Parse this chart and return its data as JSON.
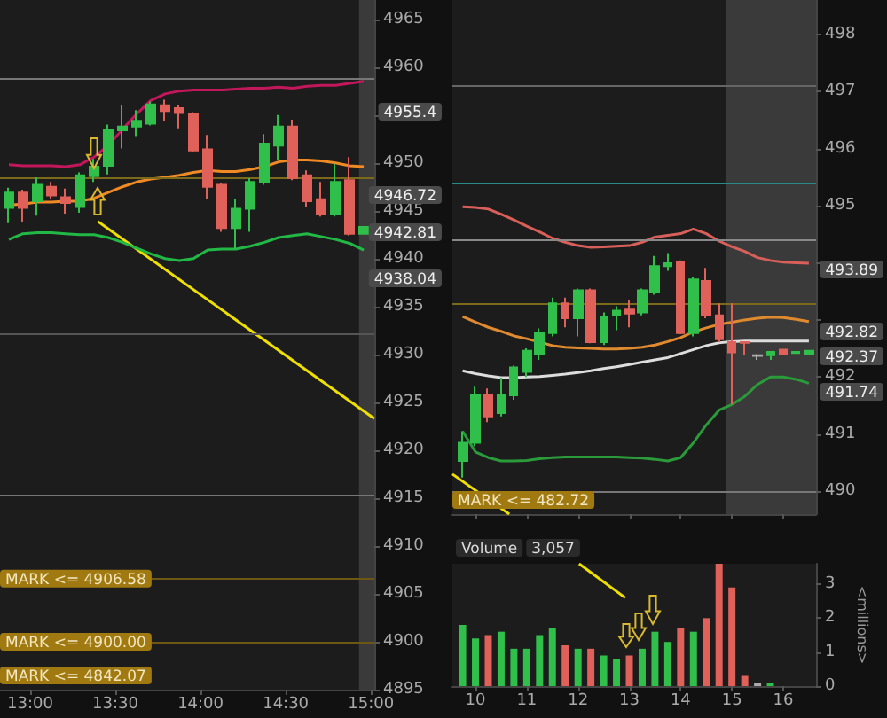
{
  "chart_data": [
    {
      "type": "candlestick",
      "x": [
        12.875,
        12.958,
        13.042,
        13.125,
        13.208,
        13.292,
        13.375,
        13.458,
        13.542,
        13.625,
        13.708,
        13.792,
        13.875,
        13.958,
        14.042,
        14.125,
        14.208,
        14.292,
        14.375,
        14.458,
        14.542,
        14.625,
        14.708,
        14.792,
        14.875,
        14.958
      ],
      "ohlc": [
        [
          4945.3,
          4947.4,
          4943.7,
          4946.9
        ],
        [
          4946.9,
          4947.2,
          4943.8,
          4945.3
        ],
        [
          4946.0,
          4948.5,
          4944.5,
          4947.7
        ],
        [
          4947.5,
          4948.0,
          4946.2,
          4946.6
        ],
        [
          4946.4,
          4947.3,
          4944.7,
          4945.8
        ],
        [
          4945.4,
          4949.0,
          4944.8,
          4948.7
        ],
        [
          4948.6,
          4950.4,
          4948.0,
          4949.6
        ],
        [
          4949.7,
          4954.0,
          4948.8,
          4953.4
        ],
        [
          4953.4,
          4956.0,
          4951.5,
          4953.8
        ],
        [
          4953.8,
          4955.5,
          4952.8,
          4954.4
        ],
        [
          4954.1,
          4956.4,
          4953.9,
          4956.1
        ],
        [
          4956.0,
          4956.6,
          4954.4,
          4955.4
        ],
        [
          4955.7,
          4956.0,
          4953.6,
          4955.2
        ],
        [
          4955.1,
          4955.3,
          4951.1,
          4951.3
        ],
        [
          4951.4,
          4952.9,
          4946.2,
          4947.5
        ],
        [
          4947.7,
          4947.9,
          4942.8,
          4943.2
        ],
        [
          4943.2,
          4946.2,
          4941.0,
          4945.2
        ],
        [
          4945.2,
          4948.4,
          4942.8,
          4948.0
        ],
        [
          4948.0,
          4953.0,
          4947.7,
          4952.0
        ],
        [
          4951.8,
          4955.0,
          4950.3,
          4953.8
        ],
        [
          4953.8,
          4954.5,
          4948.2,
          4948.4
        ],
        [
          4948.7,
          4949.2,
          4945.4,
          4946.0
        ],
        [
          4946.2,
          4948.0,
          4944.4,
          4944.6
        ],
        [
          4944.6,
          4949.9,
          4944.4,
          4948.0
        ],
        [
          4948.2,
          4950.6,
          4942.4,
          4942.6
        ],
        [
          4942.6,
          4943.3,
          4942.6,
          4943.3
        ]
      ],
      "colors": [
        "#2fbf4a",
        "#e0605a",
        "#2fbf4a",
        "#e0605a",
        "#e0605a",
        "#2fbf4a",
        "#2fbf4a",
        "#2fbf4a",
        "#2fbf4a",
        "#2fbf4a",
        "#2fbf4a",
        "#e0605a",
        "#e0605a",
        "#e0605a",
        "#e0605a",
        "#e0605a",
        "#2fbf4a",
        "#2fbf4a",
        "#2fbf4a",
        "#2fbf4a",
        "#e0605a",
        "#e0605a",
        "#e0605a",
        "#2fbf4a",
        "#e0605a",
        "#2fbf4a"
      ],
      "series": [
        {
          "type": "line",
          "color": "#c2185b",
          "values": [
            4949.8,
            4949.7,
            4949.7,
            4949.7,
            4949.6,
            4949.8,
            4950.6,
            4951.8,
            4953.5,
            4955.1,
            4956.5,
            4957.2,
            4957.5,
            4957.6,
            4957.6,
            4957.6,
            4957.7,
            4957.8,
            4957.8,
            4957.9,
            4957.8,
            4958.0,
            4958.1,
            4958.1,
            4958.3,
            4958.5
          ]
        },
        {
          "type": "line",
          "color": "#f08a24",
          "values": [
            4945.6,
            4945.7,
            4945.9,
            4945.9,
            4946.0,
            4946.0,
            4946.3,
            4946.9,
            4947.5,
            4948.0,
            4948.3,
            4948.5,
            4948.7,
            4949.0,
            4949.2,
            4949.1,
            4949.1,
            4949.3,
            4949.6,
            4950.1,
            4950.3,
            4950.3,
            4950.2,
            4950.0,
            4949.7,
            4949.6
          ]
        },
        {
          "type": "line",
          "color": "#22b845",
          "values": [
            4942.0,
            4942.6,
            4942.7,
            4942.7,
            4942.6,
            4942.5,
            4942.5,
            4942.2,
            4941.7,
            4941.1,
            4940.5,
            4940.0,
            4939.8,
            4940.0,
            4940.9,
            4941.0,
            4941.0,
            4941.3,
            4941.7,
            4942.2,
            4942.4,
            4942.6,
            4942.3,
            4942.0,
            4941.6,
            4940.9
          ]
        },
        {
          "type": "line",
          "color": "#f0e000",
          "x": [
            13.396,
            15.02
          ],
          "values": [
            4943.9,
            4923.3
          ]
        }
      ],
      "xlim": [
        12.823,
        15.02
      ],
      "xticks": [
        {
          "value": 13,
          "label": "13:00"
        },
        {
          "value": 13.5,
          "label": "13:30"
        },
        {
          "value": 14,
          "label": "14:00"
        },
        {
          "value": 14.5,
          "label": "14:30"
        },
        {
          "value": 15,
          "label": "15:00"
        }
      ],
      "ylim": [
        4895,
        4967
      ],
      "yticks": [
        4895,
        4900,
        4905,
        4910,
        4915,
        4920,
        4925,
        4930,
        4935,
        4940,
        4945,
        4950,
        {
          "value": 4955,
          "label": null
        },
        4960,
        4965
      ],
      "ref_lines": [
        {
          "axis": "y",
          "value": 4958.9,
          "color": "#777777"
        },
        {
          "axis": "y",
          "value": 4948.4,
          "color": "#7a6a1a"
        },
        {
          "axis": "y",
          "value": 4932.2,
          "color": "#555555"
        },
        {
          "axis": "y",
          "value": 4915.4,
          "color": "#777777"
        },
        {
          "axis": "y",
          "value": 4906.58,
          "label": "MARK <= 4906.58",
          "color": "#6e5714"
        },
        {
          "axis": "y",
          "value": 4900,
          "label": "MARK <= 4900.00",
          "color": "#6e5714"
        }
      ],
      "bands": [
        {
          "axis": "x",
          "from": 14.93,
          "to": 15.02,
          "color": "#3a3a3a"
        }
      ],
      "annotations": [
        "4955.4",
        "4946.72",
        "4942.81",
        "4938.04",
        "MARK <= 4842.07"
      ]
    },
    {
      "type": "candlestick",
      "x": [
        9.75,
        10,
        10.25,
        10.5,
        10.75,
        11,
        11.25,
        11.5,
        11.75,
        12,
        12.25,
        12.5,
        12.75,
        13,
        13.25,
        13.5,
        13.75,
        14,
        14.25,
        14.5,
        14.75,
        15,
        15.25,
        15.5,
        15.75,
        16,
        16.25,
        16.5
      ],
      "ohlc": [
        [
          490.53,
          491.05,
          490.24,
          490.85
        ],
        [
          490.85,
          491.83,
          490.79,
          491.68
        ],
        [
          491.68,
          491.8,
          491.21,
          491.31
        ],
        [
          491.37,
          491.99,
          491.31,
          491.68
        ],
        [
          491.68,
          492.2,
          491.6,
          492.17
        ],
        [
          492.09,
          492.5,
          492.0,
          492.46
        ],
        [
          492.41,
          492.85,
          492.3,
          492.77
        ],
        [
          492.77,
          493.39,
          492.71,
          493.29
        ],
        [
          493.29,
          493.39,
          492.87,
          493.03
        ],
        [
          493.03,
          493.55,
          492.71,
          493.52
        ],
        [
          493.52,
          493.55,
          492.59,
          492.61
        ],
        [
          492.61,
          493.13,
          492.56,
          493.06
        ],
        [
          493.08,
          493.24,
          492.82,
          493.16
        ],
        [
          493.18,
          493.34,
          492.87,
          493.11
        ],
        [
          493.13,
          493.55,
          493.08,
          493.52
        ],
        [
          493.48,
          494.12,
          493.44,
          493.94
        ],
        [
          493.94,
          494.17,
          493.86,
          493.99
        ],
        [
          494.02,
          494.04,
          492.75,
          492.77
        ],
        [
          492.77,
          493.76,
          492.71,
          493.71
        ],
        [
          493.68,
          493.91,
          493.03,
          493.08
        ],
        [
          493.08,
          493.29,
          492.61,
          492.66
        ],
        [
          492.61,
          493.29,
          491.52,
          492.43
        ],
        [
          492.61,
          492.62,
          492.38,
          492.6
        ],
        [
          492.38,
          492.4,
          492.3,
          492.37
        ],
        [
          492.38,
          492.44,
          492.3,
          492.44
        ],
        [
          492.48,
          492.48,
          492.41,
          492.41
        ],
        [
          492.42,
          492.44,
          492.42,
          492.44
        ],
        [
          492.4,
          492.46,
          492.38,
          492.46
        ]
      ],
      "colors": [
        "#2fbf4a",
        "#2fbf4a",
        "#e0605a",
        "#2fbf4a",
        "#2fbf4a",
        "#2fbf4a",
        "#2fbf4a",
        "#2fbf4a",
        "#e0605a",
        "#2fbf4a",
        "#e0605a",
        "#2fbf4a",
        "#2fbf4a",
        "#e0605a",
        "#2fbf4a",
        "#2fbf4a",
        "#2fbf4a",
        "#e0605a",
        "#2fbf4a",
        "#e0605a",
        "#e0605a",
        "#e0605a",
        "#e0605a",
        "#aaaaaa",
        "#2fbf4a",
        "#e0605a",
        "#2fbf4a",
        "#2fbf4a"
      ],
      "series": [
        {
          "type": "line",
          "color": "#d9605a",
          "values": [
            494.98,
            494.97,
            494.94,
            494.85,
            494.75,
            494.64,
            494.54,
            494.43,
            494.36,
            494.3,
            494.27,
            494.28,
            494.29,
            494.3,
            494.36,
            494.45,
            494.48,
            494.51,
            494.59,
            494.51,
            494.38,
            494.28,
            494.2,
            494.09,
            494.04,
            494.01,
            494.0,
            493.99
          ]
        },
        {
          "type": "line",
          "color": "#e08a30",
          "values": [
            493.06,
            492.96,
            492.87,
            492.8,
            492.72,
            492.67,
            492.61,
            492.55,
            492.52,
            492.51,
            492.5,
            492.49,
            492.49,
            492.5,
            492.52,
            492.56,
            492.62,
            492.69,
            492.79,
            492.86,
            492.92,
            492.96,
            493.0,
            493.03,
            493.05,
            493.04,
            493.01,
            492.97
          ]
        },
        {
          "type": "line",
          "color": "#dddddd",
          "values": [
            492.11,
            492.06,
            492.02,
            491.99,
            491.99,
            492.0,
            492.01,
            492.03,
            492.05,
            492.08,
            492.11,
            492.15,
            492.18,
            492.22,
            492.26,
            492.3,
            492.34,
            492.41,
            492.48,
            492.55,
            492.6,
            492.62,
            492.63,
            492.63,
            492.63,
            492.63,
            492.63,
            492.63
          ]
        },
        {
          "type": "line",
          "color": "#2a9a3a",
          "values": [
            491.05,
            490.69,
            490.59,
            490.53,
            490.53,
            490.54,
            490.57,
            490.59,
            490.6,
            490.6,
            490.6,
            490.6,
            490.6,
            490.59,
            490.58,
            490.56,
            490.53,
            490.59,
            490.85,
            491.16,
            491.42,
            491.52,
            491.66,
            491.87,
            492.0,
            492.0,
            491.96,
            491.89
          ]
        },
        {
          "type": "line",
          "color": "#f0e000",
          "x": [
            9.55,
            10.66
          ],
          "values": [
            490.3,
            489.6
          ]
        }
      ],
      "xlim": [
        9.55,
        16.64
      ],
      "xticks": [
        10,
        11,
        12,
        13,
        14,
        15,
        16
      ],
      "ylim": [
        489.6,
        498.6
      ],
      "yticks": [
        490,
        491,
        492,
        {
          "value": 493,
          "label": null
        },
        {
          "value": 494,
          "label": null
        },
        495,
        496,
        497,
        498
      ],
      "tick_labels": "y",
      "ref_lines": [
        {
          "axis": "y",
          "value": 497.1,
          "color": "#666666"
        },
        {
          "axis": "y",
          "value": 495.4,
          "color": "#2a8a8a"
        },
        {
          "axis": "y",
          "value": 494.4,
          "color": "#888888"
        },
        {
          "axis": "y",
          "value": 493.3,
          "color": "#7a6a1a"
        },
        {
          "axis": "y",
          "value": 490.0,
          "color": "#777777"
        }
      ],
      "bands": [
        {
          "axis": "x",
          "from": 14.88,
          "to": 16.64,
          "color": "#3a3a3a"
        }
      ],
      "annotations": [
        "493.89",
        "492.82",
        "492.37",
        "491.74",
        "MARK <= 482.72"
      ]
    },
    {
      "type": "bar",
      "x": [
        9.75,
        10,
        10.25,
        10.5,
        10.75,
        11,
        11.25,
        11.5,
        11.75,
        12,
        12.25,
        12.5,
        12.75,
        13,
        13.25,
        13.5,
        13.75,
        14,
        14.25,
        14.5,
        14.75,
        15,
        15.25,
        15.5,
        15.75
      ],
      "values": [
        1.8,
        1.4,
        1.5,
        1.6,
        1.1,
        1.1,
        1.5,
        1.7,
        1.2,
        1.1,
        1.1,
        0.9,
        0.8,
        0.9,
        1.1,
        1.6,
        1.3,
        1.7,
        1.6,
        2.0,
        3.6,
        2.9,
        0.3,
        0.1,
        0.1
      ],
      "colors": [
        "#2fbf4a",
        "#2fbf4a",
        "#e0605a",
        "#2fbf4a",
        "#2fbf4a",
        "#2fbf4a",
        "#2fbf4a",
        "#2fbf4a",
        "#e0605a",
        "#2fbf4a",
        "#e0605a",
        "#2fbf4a",
        "#2fbf4a",
        "#e0605a",
        "#2fbf4a",
        "#2fbf4a",
        "#2fbf4a",
        "#e0605a",
        "#2fbf4a",
        "#e0605a",
        "#e0605a",
        "#e0605a",
        "#e0605a",
        "#aaaaaa",
        "#2fbf4a"
      ],
      "xlim": [
        9.55,
        16.64
      ],
      "xticks": [
        10,
        11,
        12,
        13,
        14,
        15,
        16
      ],
      "ylim": [
        0,
        3.6
      ],
      "yticks": [
        0,
        1,
        2,
        3
      ],
      "series": [
        {
          "type": "line",
          "color": "#f0e000",
          "x": [
            12.02,
            12.92
          ],
          "values": [
            3.6,
            2.6
          ]
        }
      ],
      "ylabel": "<millions>",
      "annotations": [
        "Volume",
        "3,057"
      ]
    }
  ]
}
